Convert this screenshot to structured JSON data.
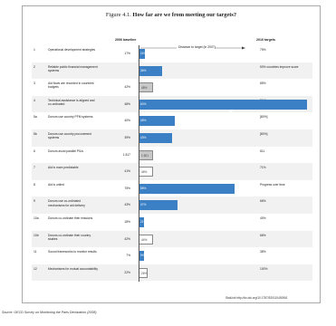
{
  "figure_label": "Figure 4.1.",
  "title": "How far are we from meeting our targets?",
  "headers": {
    "baseline": "2006 baseline",
    "distance": "Distance to target (in 2007)",
    "targets": "2010 targets"
  },
  "rows": [
    {
      "num": "1",
      "label": "Operational development strategies",
      "baseline": "17%",
      "bar_label": "24%",
      "bar_value": 24,
      "bar_style": "blue",
      "target": "75%"
    },
    {
      "num": "2",
      "label": "Reliable public financial management systems",
      "baseline": "",
      "bar_label": "36%",
      "bar_value": 36,
      "bar_style": "blue",
      "target": "50% countries improve score"
    },
    {
      "num": "3",
      "label": "Aid flows are recorded in countries' budgets",
      "baseline": "42%",
      "bar_label": "48%",
      "bar_value": 48,
      "bar_style": "gray",
      "target": "85%"
    },
    {
      "num": "4",
      "label": "Technical assistance is aligned and co-ordinated",
      "baseline": "48%",
      "bar_label": "60%",
      "bar_value": 60,
      "bar_style": "blue",
      "target": "50 %"
    },
    {
      "num": "5a",
      "label": "Donors use country PFM systems",
      "baseline": "40%",
      "bar_label": "45%",
      "bar_value": 45,
      "bar_style": "blue",
      "target": "[80%]"
    },
    {
      "num": "5b",
      "label": "Donors use country procurement systems",
      "baseline": "39%",
      "bar_label": "43%",
      "bar_value": 43,
      "bar_style": "blue",
      "target": "[80%]"
    },
    {
      "num": "6",
      "label": "Donors avoid parallel PIUs",
      "baseline": "1 817",
      "bar_label": "1 601",
      "bar_value": 1601,
      "bar_style": "gray",
      "target": "611"
    },
    {
      "num": "7",
      "label": "Aid is more predictable",
      "baseline": "41%",
      "bar_label": "46%",
      "bar_value": 46,
      "bar_style": "white",
      "target": "71%"
    },
    {
      "num": "8",
      "label": "Aid is untied",
      "baseline": "75%",
      "bar_label": "88%",
      "bar_value": 88,
      "bar_style": "blue",
      "target": "Progress over time"
    },
    {
      "num": "9",
      "label": "Donors use co-ordinated mechanisms for aid delivery",
      "baseline": "43%",
      "bar_label": "47%",
      "bar_value": 47,
      "bar_style": "blue",
      "target": "66%"
    },
    {
      "num": "10a",
      "label": "Donors co-ordinate their missions",
      "baseline": "18%",
      "bar_label": "21%",
      "bar_value": 21,
      "bar_style": "blue",
      "target": "40%"
    },
    {
      "num": "10b",
      "label": "Donors co-ordinate their country studies",
      "baseline": "42%",
      "bar_label": "44%",
      "bar_value": 44,
      "bar_style": "white",
      "target": "66%"
    },
    {
      "num": "11",
      "label": "Sound frameworks to monitor results",
      "baseline": "7%",
      "bar_label": "9%",
      "bar_value": 9,
      "bar_style": "blue",
      "target": "38%"
    },
    {
      "num": "12",
      "label": "Mechanisms for mutual accountability",
      "baseline": "22%",
      "bar_label": "26%",
      "bar_value": 26,
      "bar_style": "white",
      "target": "100%"
    }
  ],
  "footer": {
    "url": "StatLink http://dx.doi.org/10.1787/520110400061",
    "source": "Source: OECD Survey on Monitoring the Paris Declaration (2008)."
  }
}
